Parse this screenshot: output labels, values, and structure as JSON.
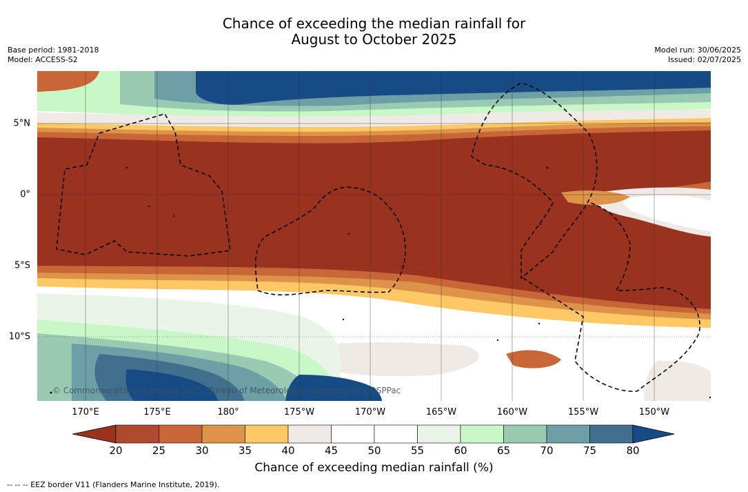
{
  "title": {
    "line1": "Chance of exceeding the median rainfall for",
    "line2": "August to October 2025"
  },
  "meta": {
    "base_period": "Base period: 1981-2018",
    "model": "Model: ACCESS-S2",
    "model_run": "Model run: 30/06/2025",
    "issued": "Issued: 02/07/2025"
  },
  "map": {
    "copyright": "© Commonwealth of Australia 2025, Bureau of Meteorology, supported by COSPPac",
    "lon_labels": [
      "170°E",
      "175°E",
      "180°",
      "175°W",
      "170°W",
      "165°W",
      "160°W",
      "155°W",
      "150°W"
    ],
    "lat_labels": [
      "5°N",
      "0°",
      "5°S",
      "10°S"
    ],
    "legend_note": "-- -- -- EEZ border V11 (Flanders Marine Institute, 2019)."
  },
  "colorbar": {
    "title": "Chance of exceeding median rainfall (%)",
    "ticks": [
      "20",
      "25",
      "30",
      "35",
      "40",
      "45",
      "50",
      "55",
      "60",
      "65",
      "70",
      "75",
      "80"
    ],
    "colors": [
      "#993320",
      "#b04a2c",
      "#c86637",
      "#de9448",
      "#fdc865",
      "#efeae5",
      "#ffffff",
      "#ffffff",
      "#e8f5e7",
      "#c8f7c8",
      "#99cbb3",
      "#6c9fa6",
      "#41708f",
      "#174b85"
    ]
  }
}
